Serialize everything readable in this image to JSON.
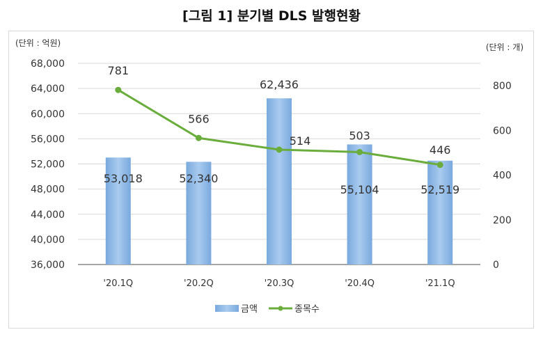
{
  "chart_data": {
    "type": "bar+line",
    "title": "[그림 1] 분기별 DLS 발행현황",
    "left_unit": "(단위 : 억원)",
    "right_unit": "(단위 : 개)",
    "categories": [
      "'20.1Q",
      "'20.2Q",
      "'20.3Q",
      "'20.4Q",
      "'21.1Q"
    ],
    "series": [
      {
        "name": "금액",
        "type": "bar",
        "axis": "left",
        "color": "#8db7e6",
        "values": [
          53018,
          52340,
          62436,
          55104,
          52519
        ],
        "labels": [
          "53,018",
          "52,340",
          "62,436",
          "55,104",
          "52,519"
        ]
      },
      {
        "name": "종목수",
        "type": "line",
        "axis": "right",
        "color": "#6aad3c",
        "values": [
          781,
          566,
          514,
          503,
          446
        ],
        "labels": [
          "781",
          "566",
          "514",
          "503",
          "446"
        ]
      }
    ],
    "left_axis": {
      "range": [
        36000,
        68000
      ],
      "ticks": [
        "36,000",
        "40,000",
        "44,000",
        "48,000",
        "52,000",
        "56,000",
        "60,000",
        "64,000",
        "68,000"
      ]
    },
    "right_axis": {
      "range": [
        0,
        900
      ],
      "ticks": [
        "0",
        "200",
        "400",
        "600",
        "800"
      ]
    },
    "grid": true,
    "legend": "bottom"
  }
}
